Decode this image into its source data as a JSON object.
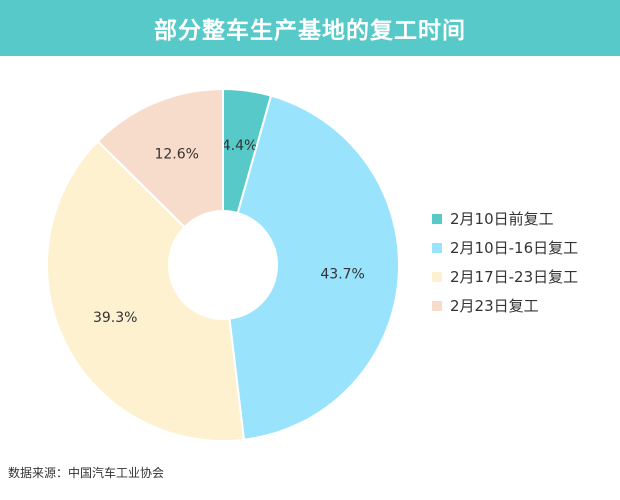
{
  "title": "部分整车生产基地的复工时间",
  "source": "数据来源：中国汽车工业协会",
  "colors": {
    "header_bg": "#56c9c8"
  },
  "chart_data": {
    "type": "pie",
    "style": "donut",
    "legend_placement": "right",
    "categories": [
      "2月10日前复工",
      "2月10日-16日复工",
      "2月17日-23日复工",
      "2月23日复工"
    ],
    "values": [
      4.4,
      43.7,
      39.3,
      12.6
    ],
    "value_labels": [
      "4.4%",
      "43.7%",
      "39.3%",
      "12.6%"
    ],
    "colors": [
      "#56c9c8",
      "#99e3fd",
      "#fdf1cf",
      "#f8dccb"
    ]
  }
}
